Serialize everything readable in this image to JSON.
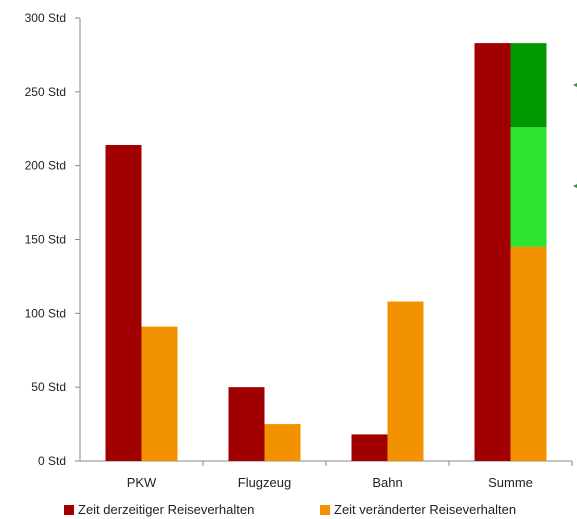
{
  "chart_data": {
    "type": "bar",
    "categories": [
      "PKW",
      "Flugzeug",
      "Bahn",
      "Summe"
    ],
    "y_ticks": [
      "0 Std",
      "50 Std",
      "100 Std",
      "150 Std",
      "200 Std",
      "250 Std",
      "300 Std"
    ],
    "ylim": [
      0,
      300
    ],
    "series": [
      {
        "name": "Zeit derzeitiger Reiseverhalten",
        "color": "#a00000",
        "values": [
          214,
          50,
          18,
          283
        ]
      },
      {
        "name": "Zeit veränderter Reiseverhalten",
        "color": "#f39200",
        "values": [
          91,
          25,
          108,
          145
        ]
      }
    ],
    "highlight_segments": [
      {
        "category": "Summe",
        "from": 145,
        "to": 226,
        "color": "#2ee32e"
      },
      {
        "category": "Summe",
        "from": 226,
        "to": 283,
        "color": "#009900"
      }
    ],
    "annotation_arrow_color": "#2e9a2e",
    "legend_position": "bottom"
  }
}
